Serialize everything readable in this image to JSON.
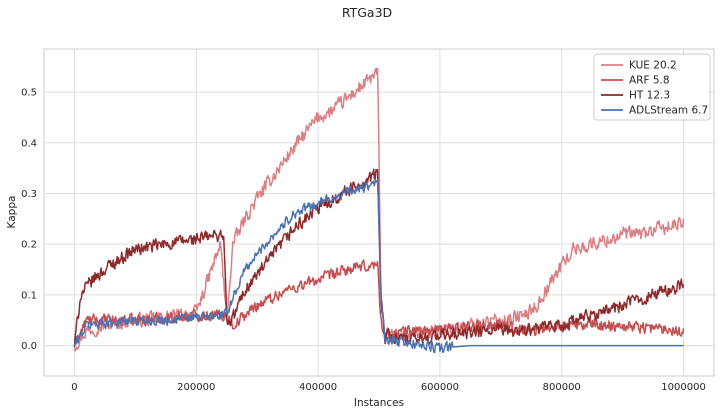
{
  "chart_data": {
    "type": "line",
    "title": "RTGa3D",
    "xlabel": "Instances",
    "ylabel": "Kappa",
    "xlim": [
      -50000,
      1050000
    ],
    "ylim": [
      -0.06,
      0.585
    ],
    "xticks": [
      0,
      200000,
      400000,
      600000,
      800000,
      1000000
    ],
    "xtick_labels": [
      "0",
      "200000",
      "400000",
      "600000",
      "800000",
      "1000000"
    ],
    "yticks": [
      0.0,
      0.1,
      0.2,
      0.3,
      0.4,
      0.5
    ],
    "ytick_labels": [
      "0.0",
      "0.1",
      "0.2",
      "0.3",
      "0.4",
      "0.5"
    ],
    "grid": true,
    "legend_position": "top-right",
    "series": [
      {
        "name": "KUE 20.2",
        "color": "#d98085",
        "x": [
          0,
          20000,
          50000,
          100000,
          150000,
          200000,
          240000,
          250000,
          260000,
          280000,
          300000,
          330000,
          360000,
          380000,
          400000,
          420000,
          450000,
          470000,
          490000,
          498000,
          503000,
          510000,
          540000,
          600000,
          650000,
          700000,
          740000,
          760000,
          780000,
          800000,
          820000,
          850000,
          880000,
          900000,
          930000,
          960000,
          1000000
        ],
        "y": [
          0.0,
          0.03,
          0.04,
          0.05,
          0.055,
          0.065,
          0.2,
          0.05,
          0.2,
          0.25,
          0.29,
          0.34,
          0.39,
          0.42,
          0.45,
          0.46,
          0.49,
          0.51,
          0.53,
          0.54,
          0.1,
          0.02,
          0.02,
          0.03,
          0.04,
          0.05,
          0.06,
          0.08,
          0.12,
          0.16,
          0.19,
          0.2,
          0.21,
          0.22,
          0.22,
          0.23,
          0.24
        ]
      },
      {
        "name": "ARF 5.8",
        "color": "#c44e52",
        "x": [
          0,
          20000,
          50000,
          100000,
          150000,
          200000,
          250000,
          260000,
          300000,
          350000,
          400000,
          450000,
          498000,
          503000,
          510000,
          550000,
          600000,
          650000,
          700000,
          750000,
          800000,
          850000,
          900000,
          950000,
          1000000
        ],
        "y": [
          0.0,
          0.05,
          0.05,
          0.05,
          0.055,
          0.06,
          0.06,
          0.04,
          0.08,
          0.11,
          0.13,
          0.15,
          0.16,
          0.05,
          0.02,
          0.03,
          0.03,
          0.04,
          0.04,
          0.03,
          0.04,
          0.04,
          0.04,
          0.035,
          0.03
        ]
      },
      {
        "name": "HT 12.3",
        "color": "#8c2a2c",
        "x": [
          0,
          10000,
          30000,
          60000,
          100000,
          150000,
          200000,
          245000,
          250000,
          255000,
          280000,
          320000,
          360000,
          400000,
          440000,
          470000,
          498000,
          503000,
          510000,
          550000,
          600000,
          650000,
          700000,
          750000,
          800000,
          850000,
          900000,
          950000,
          1000000
        ],
        "y": [
          0.0,
          0.1,
          0.13,
          0.16,
          0.19,
          0.2,
          0.21,
          0.22,
          0.05,
          0.04,
          0.11,
          0.17,
          0.23,
          0.27,
          0.3,
          0.32,
          0.34,
          0.1,
          0.02,
          0.01,
          0.02,
          0.025,
          0.03,
          0.03,
          0.04,
          0.06,
          0.08,
          0.1,
          0.12
        ]
      },
      {
        "name": "ADLStream 6.7",
        "color": "#4c72b0",
        "x": [
          0,
          20000,
          50000,
          100000,
          150000,
          200000,
          248000,
          255000,
          280000,
          320000,
          360000,
          400000,
          440000,
          470000,
          498000,
          503000,
          510000,
          550000,
          600000,
          650000,
          700000,
          750000,
          800000,
          850000,
          900000,
          950000,
          1000000
        ],
        "y": [
          0.0,
          0.04,
          0.045,
          0.05,
          0.05,
          0.055,
          0.06,
          0.08,
          0.15,
          0.21,
          0.26,
          0.28,
          0.3,
          0.31,
          0.32,
          0.1,
          0.01,
          0.005,
          -0.005,
          0.0,
          0.0,
          0.0,
          0.0,
          0.0,
          0.0,
          0.0,
          0.0
        ]
      }
    ]
  }
}
